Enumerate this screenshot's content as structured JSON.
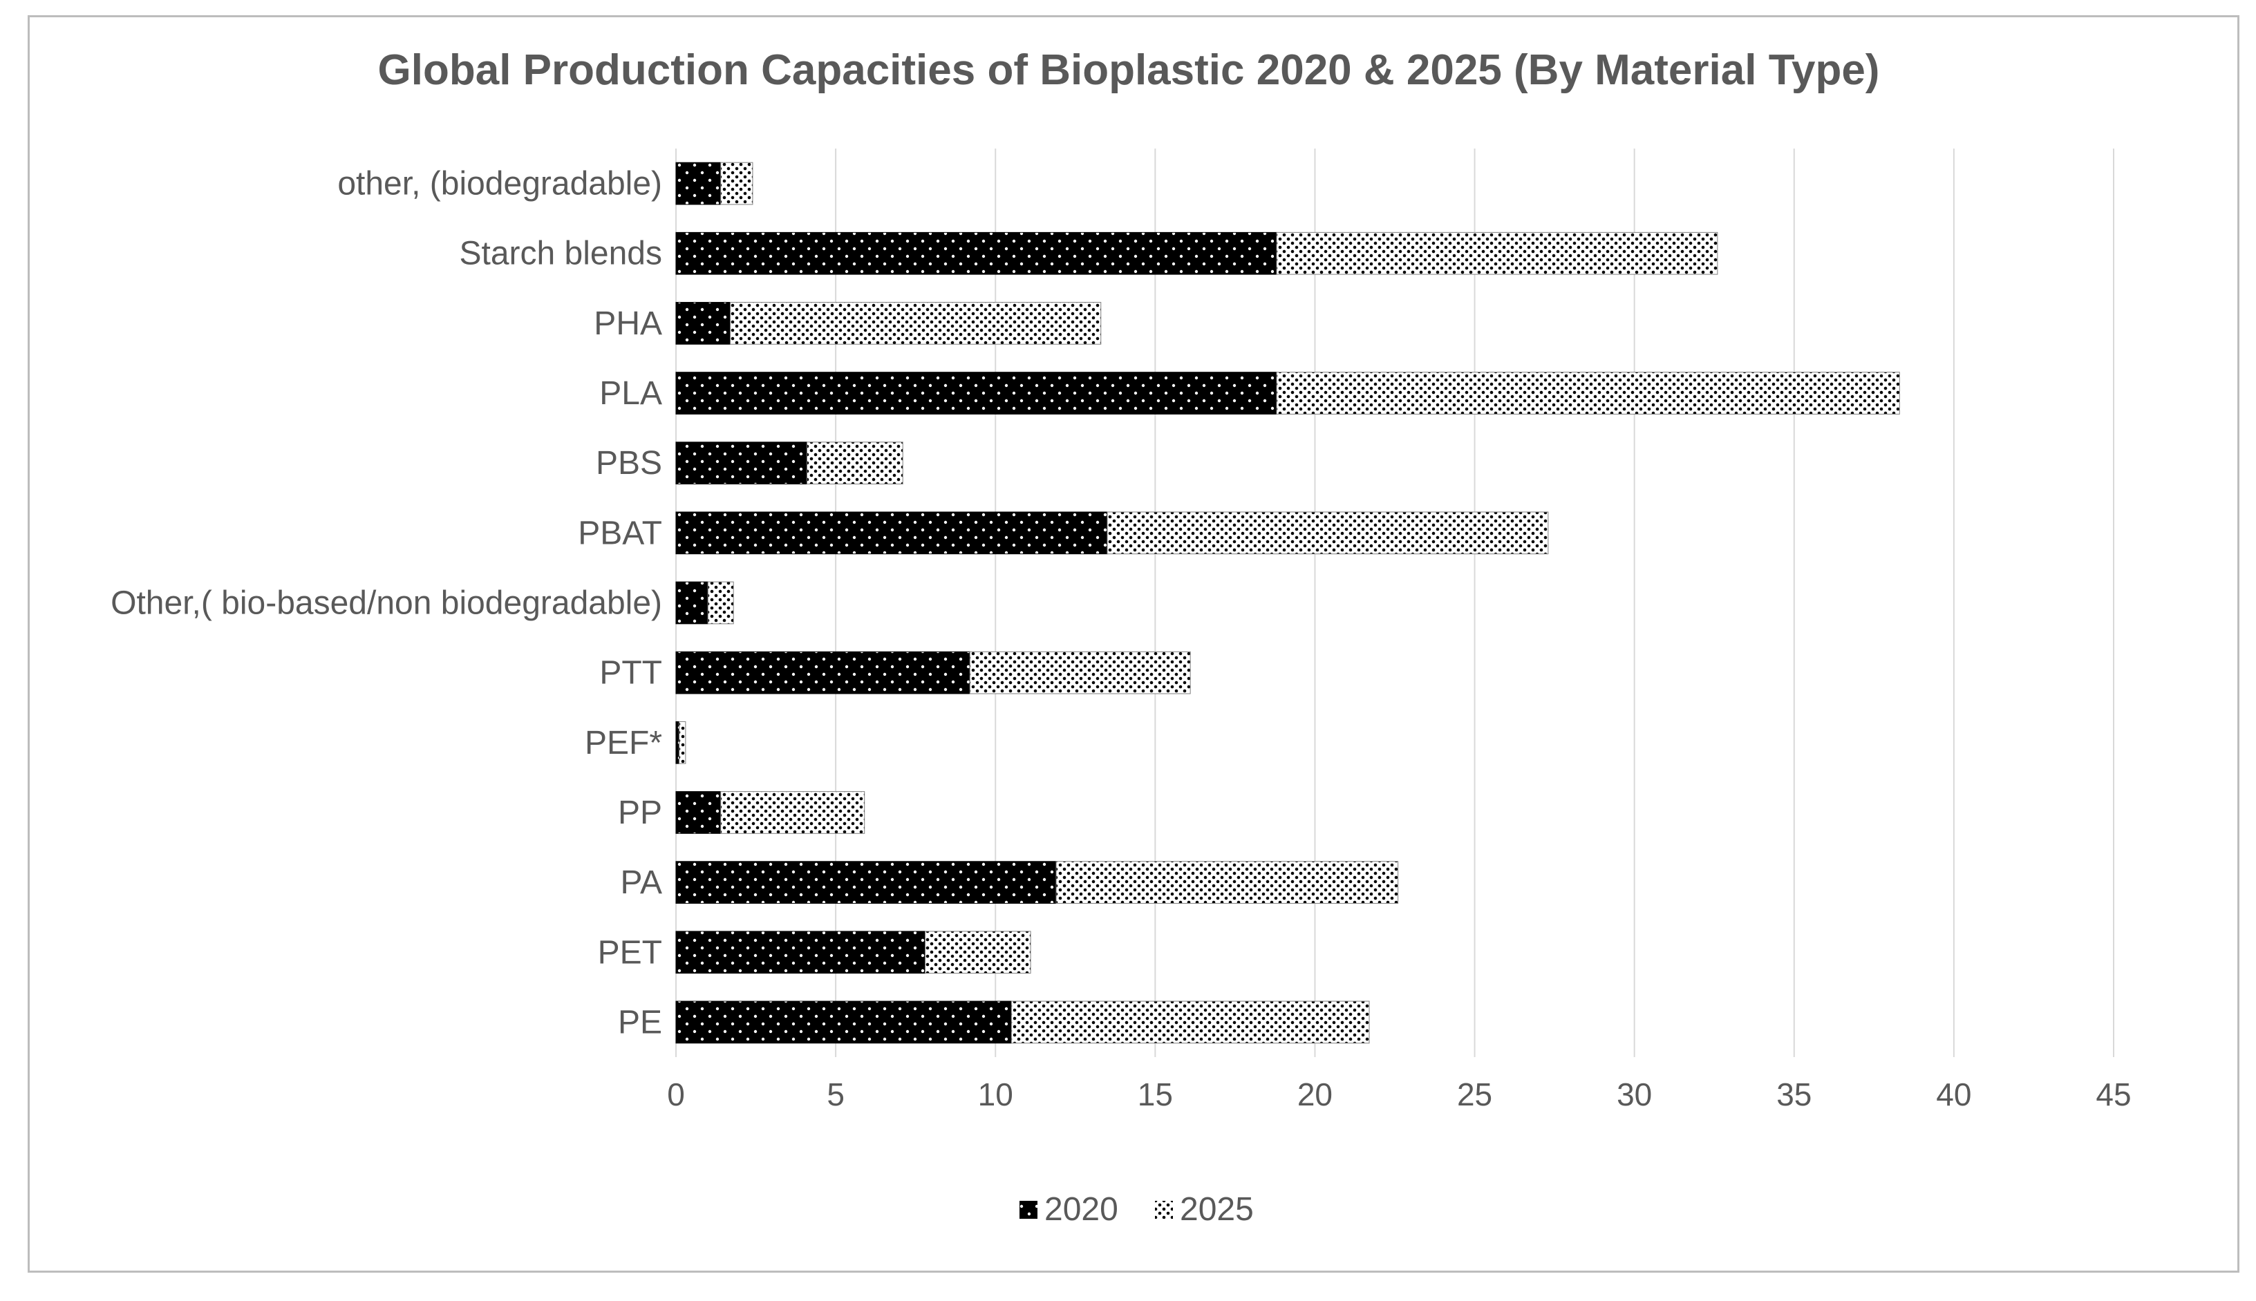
{
  "chart_data": {
    "type": "bar",
    "orientation": "horizontal",
    "stacked": true,
    "title": "Global Production Capacities of Bioplastic 2020 & 2025 (By Material Type)",
    "xlabel": "",
    "ylabel": "",
    "categories": [
      "PE",
      "PET",
      "PA",
      "PP",
      "PEF*",
      "PTT",
      "Other,( bio-based/non biodegradable)",
      "PBAT",
      "PBS",
      "PLA",
      "PHA",
      "Starch blends",
      "other, (biodegradable)"
    ],
    "series": [
      {
        "name": "2020",
        "pattern": "black-dots",
        "values": [
          10.5,
          7.8,
          11.9,
          1.4,
          0.1,
          9.2,
          1.0,
          13.5,
          4.1,
          18.8,
          1.7,
          18.8,
          1.4
        ]
      },
      {
        "name": "2025",
        "pattern": "white-dots",
        "values": [
          11.2,
          3.3,
          10.7,
          4.5,
          0.2,
          6.9,
          0.8,
          13.8,
          3.0,
          19.5,
          11.6,
          13.8,
          1.0
        ]
      }
    ],
    "xlim": [
      0,
      45
    ],
    "xticks": [
      "0",
      "5",
      "10",
      "15",
      "20",
      "25",
      "30",
      "35",
      "40",
      "45"
    ],
    "grid": true,
    "legend": "bottom"
  },
  "colors": {
    "bar_dark": "#000000",
    "bar_light": "#ffffff",
    "grid": "#d9d9d9",
    "text": "#595959",
    "border": "#bdbdbd"
  }
}
